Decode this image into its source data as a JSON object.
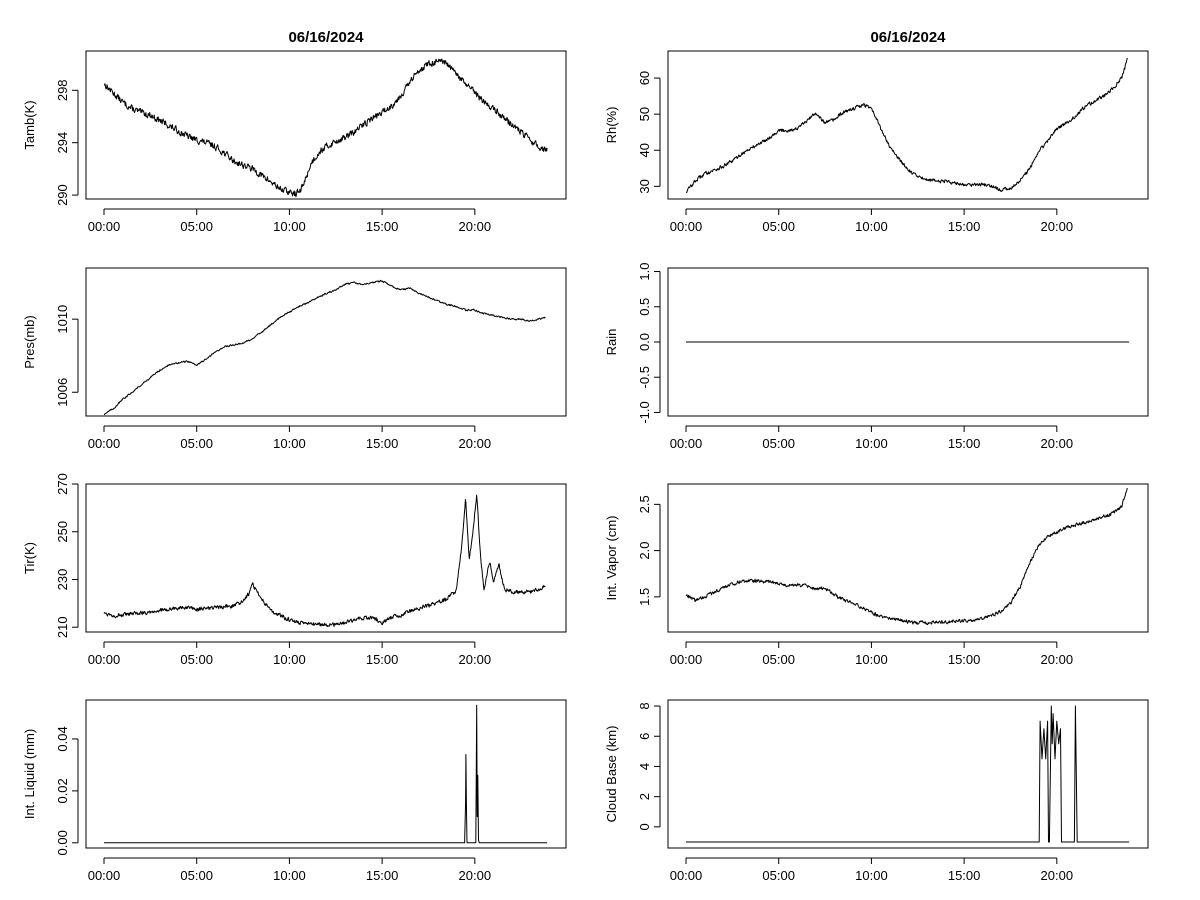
{
  "chart_data": [
    {
      "id": "tamb",
      "type": "line",
      "title": "06/16/2024",
      "xlabel": "",
      "ylabel": "Tamb(K)",
      "xlim": [
        0,
        24
      ],
      "ylim": [
        289.7,
        301
      ],
      "yticks": [
        290,
        294,
        298
      ],
      "ytick_labels": [
        "290",
        "294",
        "298"
      ],
      "xticks": [
        0,
        5,
        10,
        15,
        20
      ],
      "xtick_labels": [
        "00:00",
        "05:00",
        "10:00",
        "15:00",
        "20:00"
      ],
      "noise": 0.35,
      "series": [
        {
          "x": [
            0,
            0.5,
            1,
            1.5,
            2,
            2.5,
            3,
            3.5,
            4,
            4.5,
            5,
            5.5,
            6,
            6.5,
            7,
            7.5,
            8,
            8.5,
            9,
            9.5,
            10,
            10.3,
            10.6,
            10.8,
            11.2,
            11.6,
            12,
            12.5,
            13,
            13.5,
            14,
            14.5,
            15,
            15.5,
            16,
            16.5,
            17,
            17.5,
            18,
            18.5,
            19,
            19.5,
            20,
            20.5,
            21,
            21.5,
            22,
            22.5,
            23,
            23.5,
            23.9
          ],
          "values": [
            298.5,
            297.8,
            297.1,
            296.6,
            296.3,
            296.1,
            295.7,
            295.3,
            294.9,
            294.5,
            294.2,
            294.0,
            293.7,
            293.2,
            292.6,
            292.3,
            292.0,
            291.5,
            291.0,
            290.5,
            290.2,
            290.1,
            290.3,
            291.0,
            292.5,
            293.3,
            293.7,
            294.1,
            294.4,
            294.8,
            295.4,
            295.9,
            296.3,
            296.8,
            297.6,
            298.6,
            299.6,
            300.0,
            300.2,
            300.0,
            299.2,
            298.5,
            297.8,
            297.1,
            296.6,
            296.0,
            295.4,
            294.8,
            294.2,
            293.6,
            293.5
          ]
        }
      ]
    },
    {
      "id": "rh",
      "type": "line",
      "title": "06/16/2024",
      "xlabel": "",
      "ylabel": "Rh(%)",
      "xlim": [
        0,
        24
      ],
      "ylim": [
        26.5,
        67.5
      ],
      "yticks": [
        30,
        40,
        50,
        60
      ],
      "ytick_labels": [
        "30",
        "40",
        "50",
        "60"
      ],
      "xticks": [
        0,
        5,
        10,
        15,
        20
      ],
      "xtick_labels": [
        "00:00",
        "05:00",
        "10:00",
        "15:00",
        "20:00"
      ],
      "noise": 0.7,
      "series": [
        {
          "x": [
            0,
            0.5,
            1,
            1.5,
            2,
            2.5,
            3,
            3.5,
            4,
            4.5,
            5,
            5.5,
            6,
            6.5,
            7,
            7.5,
            8,
            8.5,
            9,
            9.5,
            10,
            10.5,
            11,
            11.5,
            12,
            12.5,
            13,
            13.5,
            14,
            14.5,
            15,
            15.5,
            16,
            16.5,
            17,
            17.5,
            18,
            18.5,
            19,
            19.5,
            20,
            20.5,
            21,
            21.5,
            22,
            22.5,
            23,
            23.5,
            23.8
          ],
          "values": [
            28.5,
            31.5,
            33.5,
            34.5,
            35.5,
            37,
            39,
            40.5,
            42,
            43.5,
            45.5,
            45.5,
            46,
            48,
            50.5,
            47.5,
            48.5,
            50.5,
            51.5,
            52.5,
            52,
            46,
            41,
            37.5,
            34.5,
            32.5,
            32,
            31.5,
            31.5,
            31,
            30.5,
            30.5,
            30.5,
            30,
            29,
            29.5,
            31.5,
            34.5,
            39.5,
            42.5,
            46,
            47.5,
            49.5,
            52,
            53.5,
            55,
            57,
            60,
            65
          ]
        }
      ]
    },
    {
      "id": "pres",
      "type": "line",
      "title": "",
      "xlabel": "",
      "ylabel": "Pres(mb)",
      "xlim": [
        0,
        24
      ],
      "ylim": [
        1004.7,
        1012.8
      ],
      "yticks": [
        1006,
        1010
      ],
      "ytick_labels": [
        "1006",
        "1010"
      ],
      "xticks": [
        0,
        5,
        10,
        15,
        20
      ],
      "xtick_labels": [
        "00:00",
        "05:00",
        "10:00",
        "15:00",
        "20:00"
      ],
      "noise": 0.06,
      "series": [
        {
          "x": [
            0,
            0.5,
            1,
            1.5,
            2,
            2.5,
            3,
            3.5,
            4,
            4.5,
            5,
            5.5,
            6,
            6.5,
            7,
            7.5,
            8,
            8.5,
            9,
            9.5,
            10,
            10.5,
            11,
            11.5,
            12,
            12.5,
            13,
            13.5,
            14,
            14.5,
            15,
            15.5,
            16,
            16.5,
            17,
            17.5,
            18,
            18.5,
            19,
            19.5,
            20,
            20.5,
            21,
            21.5,
            22,
            22.5,
            23,
            23.5,
            23.8
          ],
          "values": [
            1004.8,
            1005.1,
            1005.6,
            1006.0,
            1006.4,
            1006.8,
            1007.2,
            1007.5,
            1007.6,
            1007.7,
            1007.5,
            1007.8,
            1008.2,
            1008.5,
            1008.6,
            1008.7,
            1008.9,
            1009.3,
            1009.7,
            1010.1,
            1010.4,
            1010.7,
            1010.9,
            1011.2,
            1011.4,
            1011.6,
            1011.9,
            1012.0,
            1011.9,
            1012.0,
            1012.1,
            1011.8,
            1011.6,
            1011.7,
            1011.4,
            1011.2,
            1011.0,
            1010.8,
            1010.7,
            1010.5,
            1010.5,
            1010.3,
            1010.2,
            1010.1,
            1010.0,
            1010.0,
            1009.9,
            1010.0,
            1010.1
          ]
        }
      ]
    },
    {
      "id": "rain",
      "type": "line",
      "title": "",
      "xlabel": "",
      "ylabel": "Rain",
      "xlim": [
        0,
        24
      ],
      "ylim": [
        -1.05,
        1.05
      ],
      "yticks": [
        -1.0,
        -0.5,
        0.0,
        0.5,
        1.0
      ],
      "ytick_labels": [
        "-1.0",
        "-0.5",
        "0.0",
        "0.5",
        "1.0"
      ],
      "xticks": [
        0,
        5,
        10,
        15,
        20
      ],
      "xtick_labels": [
        "00:00",
        "05:00",
        "10:00",
        "15:00",
        "20:00"
      ],
      "noise": 0,
      "series": [
        {
          "x": [
            0,
            23.9
          ],
          "values": [
            0,
            0
          ]
        }
      ]
    },
    {
      "id": "tir",
      "type": "line",
      "title": "",
      "xlabel": "",
      "ylabel": "Tir(K)",
      "xlim": [
        0,
        24
      ],
      "ylim": [
        208,
        270
      ],
      "yticks": [
        210,
        230,
        250,
        270
      ],
      "ytick_labels": [
        "210",
        "230",
        "250",
        "270"
      ],
      "xticks": [
        0,
        5,
        10,
        15,
        20
      ],
      "xtick_labels": [
        "00:00",
        "05:00",
        "10:00",
        "15:00",
        "20:00"
      ],
      "noise": 1.2,
      "series": [
        {
          "x": [
            0,
            0.5,
            1,
            1.5,
            2,
            2.5,
            3,
            3.5,
            4,
            4.5,
            5,
            5.5,
            6,
            6.5,
            7,
            7.5,
            7.8,
            8,
            8.3,
            8.7,
            9,
            9.5,
            10,
            10.5,
            11,
            11.5,
            12,
            12.5,
            13,
            13.5,
            14,
            14.5,
            15,
            15.5,
            16,
            16.5,
            17,
            17.5,
            18,
            18.5,
            19,
            19.3,
            19.5,
            19.7,
            19.9,
            20.1,
            20.3,
            20.5,
            20.8,
            21,
            21.3,
            21.6,
            21.9,
            22.2,
            22.5,
            23,
            23.5,
            23.8
          ],
          "values": [
            216,
            215,
            215,
            215.5,
            216,
            216.5,
            217,
            217.5,
            218,
            218,
            217.5,
            218,
            218,
            218.5,
            219,
            221,
            224,
            229,
            224,
            220,
            217,
            215,
            213,
            212,
            211.5,
            211,
            211,
            211,
            212,
            213,
            214,
            214,
            212,
            214,
            215,
            217,
            218,
            219,
            220,
            222,
            225,
            245,
            264,
            238,
            250,
            266,
            240,
            226,
            238,
            228,
            236,
            226,
            225,
            225,
            224.5,
            225,
            226,
            227
          ]
        }
      ]
    },
    {
      "id": "vapor",
      "type": "line",
      "title": "",
      "xlabel": "",
      "ylabel": "Int. Vapor (cm)",
      "xlim": [
        0,
        24
      ],
      "ylim": [
        1.12,
        2.72
      ],
      "yticks": [
        1.5,
        2.0,
        2.5
      ],
      "ytick_labels": [
        "1.5",
        "2.0",
        "2.5"
      ],
      "xticks": [
        0,
        5,
        10,
        15,
        20
      ],
      "xtick_labels": [
        "00:00",
        "05:00",
        "10:00",
        "15:00",
        "20:00"
      ],
      "noise": 0.025,
      "series": [
        {
          "x": [
            0,
            0.5,
            1,
            1.5,
            2,
            2.5,
            3,
            3.5,
            4,
            4.5,
            5,
            5.5,
            6,
            6.5,
            7,
            7.5,
            8,
            8.5,
            9,
            9.5,
            10,
            10.5,
            11,
            11.5,
            12,
            12.5,
            13,
            13.5,
            14,
            14.5,
            15,
            15.5,
            16,
            16.5,
            17,
            17.5,
            18,
            18.5,
            19,
            19.5,
            20,
            20.5,
            21,
            21.5,
            22,
            22.5,
            23,
            23.5,
            23.8
          ],
          "values": [
            1.52,
            1.46,
            1.5,
            1.55,
            1.6,
            1.64,
            1.67,
            1.68,
            1.67,
            1.66,
            1.64,
            1.62,
            1.63,
            1.62,
            1.58,
            1.6,
            1.52,
            1.47,
            1.43,
            1.38,
            1.33,
            1.29,
            1.26,
            1.25,
            1.23,
            1.22,
            1.22,
            1.23,
            1.23,
            1.24,
            1.24,
            1.25,
            1.27,
            1.3,
            1.34,
            1.43,
            1.6,
            1.85,
            2.05,
            2.15,
            2.2,
            2.25,
            2.28,
            2.3,
            2.33,
            2.37,
            2.4,
            2.48,
            2.68
          ]
        }
      ]
    },
    {
      "id": "liquid",
      "type": "line",
      "title": "",
      "xlabel": "",
      "ylabel": "Int. Liquid (mm)",
      "xlim": [
        0,
        24
      ],
      "ylim": [
        -0.002,
        0.055
      ],
      "yticks": [
        0.0,
        0.02,
        0.04
      ],
      "ytick_labels": [
        "0.00",
        "0.02",
        "0.04"
      ],
      "xticks": [
        0,
        5,
        10,
        15,
        20
      ],
      "xtick_labels": [
        "00:00",
        "05:00",
        "10:00",
        "15:00",
        "20:00"
      ],
      "noise": 0,
      "series": [
        {
          "x": [
            0,
            19.45,
            19.5,
            19.52,
            19.55,
            19.58,
            19.62,
            20.05,
            20.1,
            20.13,
            20.16,
            20.2,
            20.24,
            20.3,
            23.9
          ],
          "values": [
            0,
            0,
            0.016,
            0.034,
            0.012,
            0,
            0,
            0,
            0.053,
            0.01,
            0.026,
            0.001,
            0,
            0,
            0
          ]
        }
      ]
    },
    {
      "id": "cloudbase",
      "type": "line",
      "title": "",
      "xlabel": "",
      "ylabel": "Cloud Base (km)",
      "xlim": [
        0,
        24
      ],
      "ylim": [
        -1.4,
        8.4
      ],
      "yticks": [
        0,
        2,
        4,
        6,
        8
      ],
      "ytick_labels": [
        "0",
        "2",
        "4",
        "6",
        "8"
      ],
      "xticks": [
        0,
        5,
        10,
        15,
        20
      ],
      "xtick_labels": [
        "00:00",
        "05:00",
        "10:00",
        "15:00",
        "20:00"
      ],
      "noise": 0,
      "series": [
        {
          "x": [
            0,
            19.05,
            19.1,
            19.2,
            19.3,
            19.4,
            19.5,
            19.55,
            19.6,
            19.7,
            19.75,
            19.8,
            19.9,
            20.0,
            20.1,
            20.2,
            20.25,
            20.3,
            20.95,
            21.0,
            21.05,
            21.1,
            23.9
          ],
          "values": [
            -1,
            -1,
            7,
            4.5,
            6.5,
            4.5,
            7,
            -1,
            -1,
            8,
            5.5,
            7.5,
            4.5,
            7,
            5.5,
            6.5,
            -1,
            -1,
            -1,
            8,
            3.5,
            -1,
            -1
          ]
        }
      ]
    }
  ]
}
